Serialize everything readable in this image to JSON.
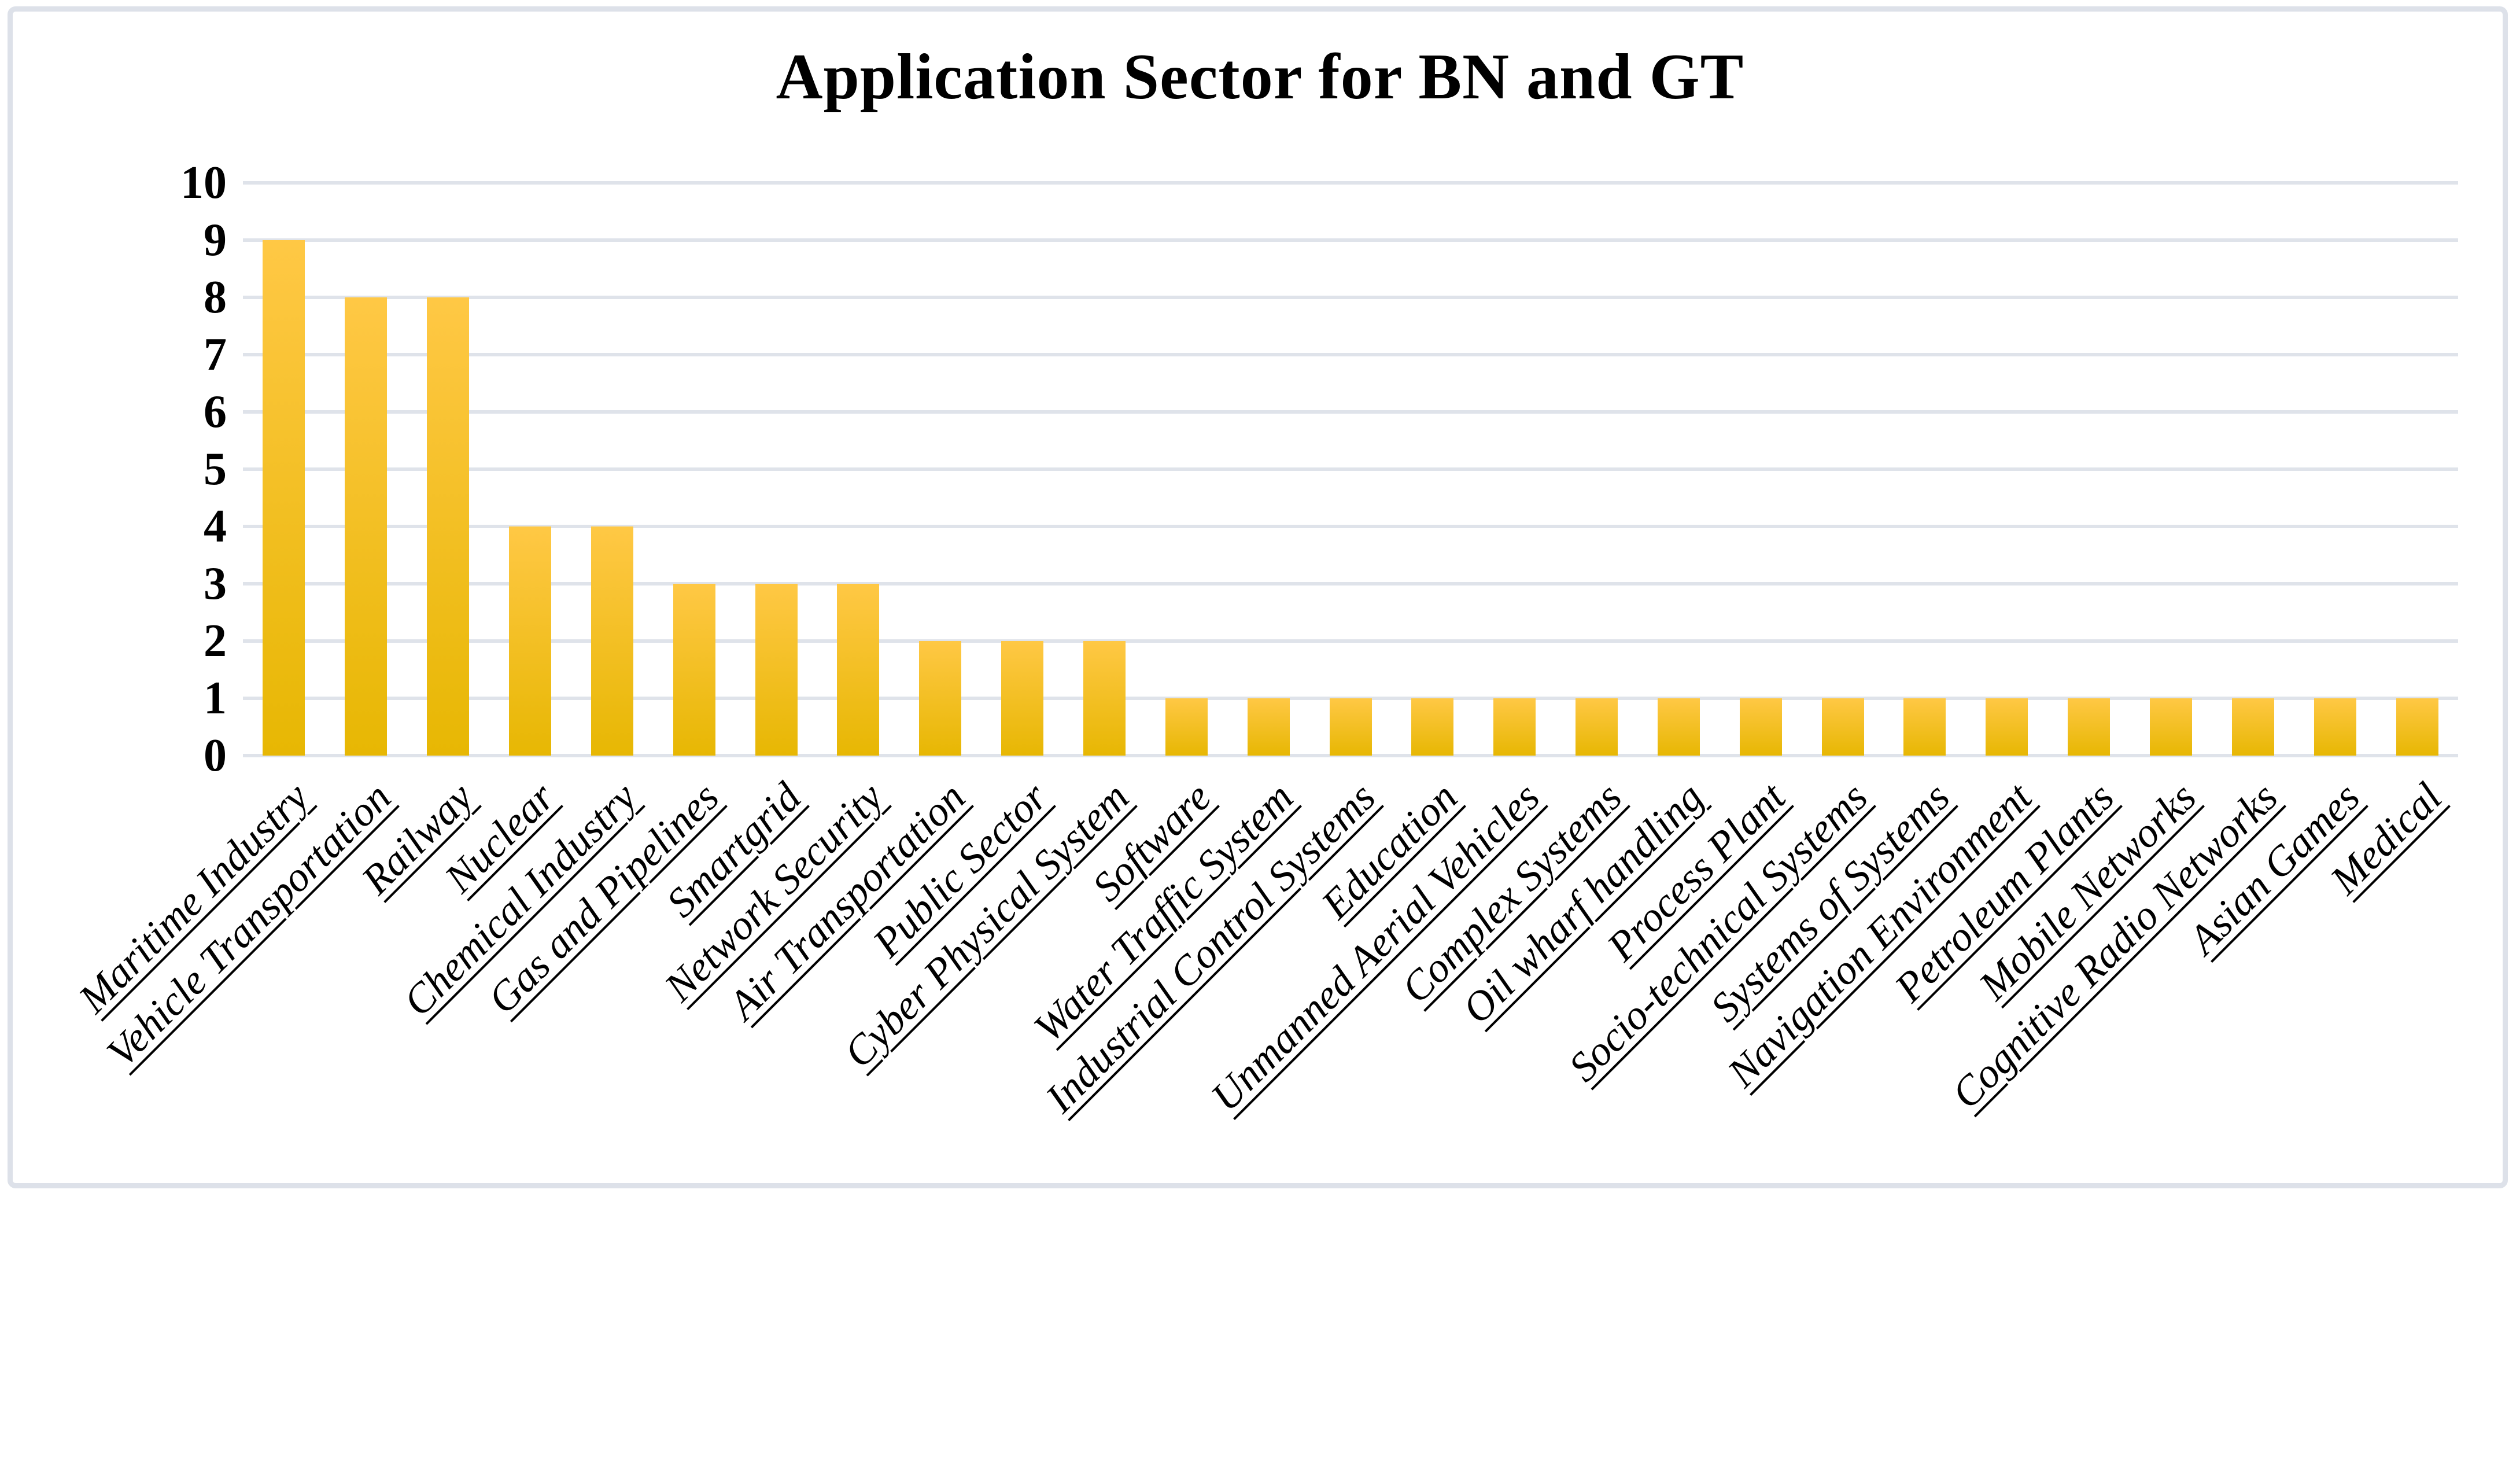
{
  "header": {
    "title": "Application Sector for BN and GT"
  },
  "chart_data": {
    "type": "bar",
    "title": "Application Sector for BN and GT",
    "categories": [
      "Maritime Industry",
      "Vehicle Transportation",
      "Railway",
      "Nuclear",
      "Chemical Industry",
      "Gas and Pipelines",
      "Smartgrid",
      "Network Security",
      "Air Transportation",
      "Public Sector",
      "Cyber Physical System",
      "Software",
      "Water Traffic System",
      "Industrial Control Systems",
      "Education",
      "Unmanned Aerial Vehicles",
      "Complex Systems",
      "Oil wharf handling",
      "Process Plant",
      "Socio-technical Systems",
      "Systems of Systems",
      "Navigation Environment",
      "Petroleum Plants",
      "Mobile Networks",
      "Cognitive Radio Networks",
      "Asian Games",
      "Medical"
    ],
    "values": [
      9,
      8,
      8,
      4,
      4,
      3,
      3,
      3,
      2,
      2,
      2,
      1,
      1,
      1,
      1,
      1,
      1,
      1,
      1,
      1,
      1,
      1,
      1,
      1,
      1,
      1,
      1
    ],
    "xlabel": "",
    "ylabel": "",
    "ylim": [
      0,
      10
    ],
    "yticks": [
      0,
      1,
      2,
      3,
      4,
      5,
      6,
      7,
      8,
      9,
      10
    ],
    "grid": "horizontal",
    "legend": "none",
    "x_label_rotation_deg": 45,
    "x_label_style": "italic underlined"
  },
  "colors": {
    "bar_top": "#ffc845",
    "bar_bottom": "#e7b703",
    "gridline": "#dfe3ea",
    "border": "#dde1e9",
    "text": "#000000",
    "background": "#ffffff"
  }
}
